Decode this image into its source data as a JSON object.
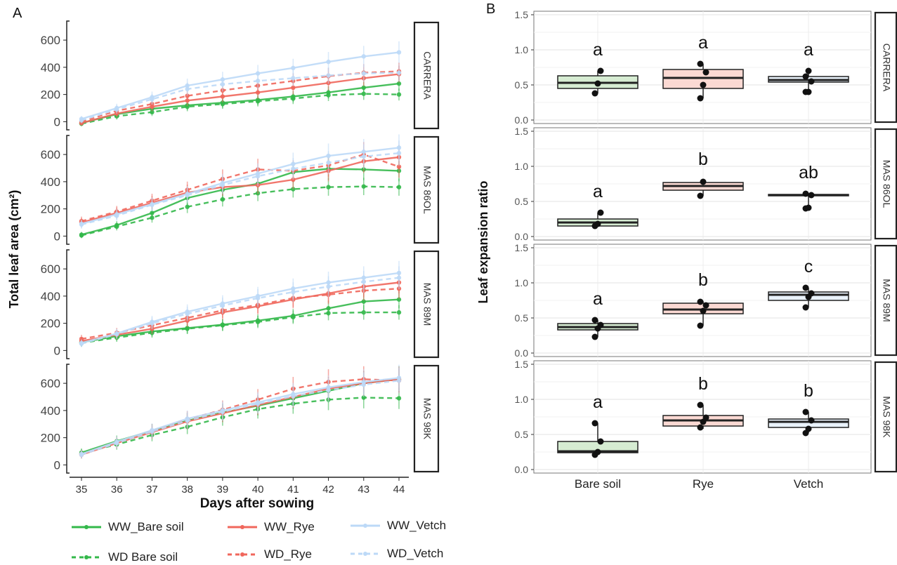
{
  "colors": {
    "bare_soil": "#33b84a",
    "rye": "#f0675c",
    "vetch": "#bcd9f7",
    "box_bare": "#d6ecd2",
    "box_rye": "#fbd9d3",
    "box_vetch": "#e9f2fb"
  },
  "panel_labels": [
    "A",
    "B"
  ],
  "legend": [
    {
      "label": "WW_Bare soil",
      "series": "bare",
      "dashed": false
    },
    {
      "label": "WD  Bare soil",
      "series": "bare",
      "dashed": true
    },
    {
      "label": "WW_Rye",
      "series": "rye",
      "dashed": false
    },
    {
      "label": "WD_Rye",
      "series": "rye",
      "dashed": true
    },
    {
      "label": "WW_Vetch",
      "series": "vetch",
      "dashed": false
    },
    {
      "label": "WD_Vetch",
      "series": "vetch",
      "dashed": true
    }
  ],
  "chart_data": [
    {
      "type": "line",
      "panel": "A",
      "xlabel": "Days after sowing",
      "ylabel": "Total leaf area (cm²)",
      "x": [
        35,
        36,
        37,
        38,
        39,
        40,
        41,
        42,
        43,
        44
      ],
      "xlim": [
        35,
        44
      ],
      "ylim": [
        -60,
        740
      ],
      "yticks": [
        0,
        200,
        400,
        600
      ],
      "facets": [
        {
          "name": "CARRERA",
          "series": [
            {
              "name": "WW_Bare soil",
              "values": [
                -10,
                55,
                95,
                120,
                140,
                160,
                185,
                215,
                250,
                280
              ]
            },
            {
              "name": "WD  Bare soil",
              "values": [
                -15,
                40,
                70,
                110,
                130,
                150,
                170,
                195,
                205,
                200
              ]
            },
            {
              "name": "WW_Rye",
              "values": [
                -10,
                60,
                110,
                155,
                185,
                215,
                250,
                285,
                320,
                350
              ]
            },
            {
              "name": "WD_Rye",
              "values": [
                0,
                80,
                130,
                190,
                230,
                265,
                300,
                335,
                360,
                370
              ]
            },
            {
              "name": "WW_Vetch",
              "values": [
                20,
                100,
                180,
                265,
                310,
                355,
                395,
                440,
                480,
                510
              ]
            },
            {
              "name": "WD_Vetch",
              "values": [
                10,
                90,
                165,
                240,
                275,
                300,
                320,
                340,
                355,
                360
              ]
            }
          ]
        },
        {
          "name": "MAS 86OL",
          "series": [
            {
              "name": "WW_Bare soil",
              "values": [
                10,
                80,
                170,
                280,
                340,
                385,
                470,
                495,
                490,
                480
              ]
            },
            {
              "name": "WD  Bare soil",
              "values": [
                5,
                70,
                135,
                215,
                270,
                315,
                345,
                360,
                365,
                360
              ]
            },
            {
              "name": "WW_Rye",
              "values": [
                100,
                170,
                245,
                320,
                360,
                375,
                415,
                480,
                550,
                580
              ]
            },
            {
              "name": "WD_Rye",
              "values": [
                110,
                180,
                260,
                340,
                420,
                490,
                480,
                520,
                600,
                510
              ]
            },
            {
              "name": "WW_Vetch",
              "values": [
                90,
                160,
                235,
                310,
                390,
                460,
                530,
                590,
                620,
                650
              ]
            },
            {
              "name": "WD_Vetch",
              "values": [
                85,
                150,
                230,
                300,
                375,
                440,
                495,
                540,
                585,
                610
              ]
            }
          ]
        },
        {
          "name": "MAS 89M",
          "series": [
            {
              "name": "WW_Bare soil",
              "values": [
                60,
                105,
                140,
                165,
                190,
                220,
                255,
                310,
                360,
                375
              ]
            },
            {
              "name": "WD  Bare soil",
              "values": [
                55,
                95,
                130,
                160,
                185,
                210,
                245,
                275,
                280,
                280
              ]
            },
            {
              "name": "WW_Rye",
              "values": [
                70,
                115,
                160,
                220,
                280,
                325,
                375,
                420,
                470,
                500
              ]
            },
            {
              "name": "WD_Rye",
              "values": [
                85,
                130,
                185,
                240,
                295,
                335,
                385,
                410,
                440,
                455
              ]
            },
            {
              "name": "WW_Vetch",
              "values": [
                55,
                125,
                210,
                285,
                345,
                400,
                455,
                500,
                535,
                570
              ]
            },
            {
              "name": "WD_Vetch",
              "values": [
                50,
                120,
                200,
                270,
                330,
                385,
                430,
                470,
                505,
                535
              ]
            }
          ]
        },
        {
          "name": "MAS 98K",
          "series": [
            {
              "name": "WW_Bare soil",
              "values": [
                90,
                175,
                250,
                325,
                385,
                435,
                490,
                545,
                600,
                630
              ]
            },
            {
              "name": "WD  Bare soil",
              "values": [
                85,
                150,
                220,
                280,
                350,
                410,
                450,
                480,
                495,
                490
              ]
            },
            {
              "name": "WW_Rye",
              "values": [
                75,
                160,
                240,
                320,
                380,
                440,
                500,
                560,
                600,
                630
              ]
            },
            {
              "name": "WD_Rye",
              "values": [
                80,
                165,
                250,
                335,
                405,
                480,
                560,
                610,
                630,
                620
              ]
            },
            {
              "name": "WW_Vetch",
              "values": [
                80,
                170,
                255,
                340,
                400,
                460,
                520,
                570,
                610,
                640
              ]
            },
            {
              "name": "WD_Vetch",
              "values": [
                75,
                160,
                245,
                325,
                390,
                450,
                505,
                550,
                590,
                620
              ]
            }
          ]
        }
      ]
    },
    {
      "type": "box",
      "panel": "B",
      "xlabel": "",
      "ylabel": "Leaf expansion ratio",
      "categories": [
        "Bare soil",
        "Rye",
        "Vetch"
      ],
      "ylim": [
        -0.05,
        1.55
      ],
      "yticks": [
        "0.0",
        "0.5",
        "1.0",
        "1.5"
      ],
      "facets": [
        {
          "name": "CARRERA",
          "boxes": [
            {
              "q1": 0.45,
              "median": 0.53,
              "q3": 0.63,
              "whisker_low": 0.38,
              "whisker_high": 0.7,
              "points": [
                0.38,
                0.52,
                0.7
              ],
              "letter": "a"
            },
            {
              "q1": 0.45,
              "median": 0.6,
              "q3": 0.72,
              "whisker_low": 0.31,
              "whisker_high": 0.8,
              "points": [
                0.31,
                0.5,
                0.68,
                0.8
              ],
              "letter": "a"
            },
            {
              "q1": 0.54,
              "median": 0.57,
              "q3": 0.62,
              "whisker_low": 0.4,
              "whisker_high": 0.7,
              "points": [
                0.4,
                0.4,
                0.55,
                0.62,
                0.7
              ],
              "letter": "a"
            }
          ]
        },
        {
          "name": "MAS 86OL",
          "boxes": [
            {
              "q1": 0.15,
              "median": 0.2,
              "q3": 0.25,
              "whisker_low": 0.15,
              "whisker_high": 0.34,
              "points": [
                0.15,
                0.18,
                0.34
              ],
              "letter": "a"
            },
            {
              "q1": 0.66,
              "median": 0.72,
              "q3": 0.77,
              "whisker_low": 0.58,
              "whisker_high": 0.8,
              "points": [
                0.58,
                0.78
              ],
              "letter": "b"
            },
            {
              "q1": 0.59,
              "median": 0.59,
              "q3": 0.6,
              "whisker_low": 0.4,
              "whisker_high": 0.61,
              "points": [
                0.4,
                0.41,
                0.59,
                0.61
              ],
              "letter": "ab"
            }
          ]
        },
        {
          "name": "MAS 89M",
          "boxes": [
            {
              "q1": 0.33,
              "median": 0.37,
              "q3": 0.42,
              "whisker_low": 0.23,
              "whisker_high": 0.47,
              "points": [
                0.23,
                0.35,
                0.4,
                0.47
              ],
              "letter": "a"
            },
            {
              "q1": 0.56,
              "median": 0.62,
              "q3": 0.71,
              "whisker_low": 0.39,
              "whisker_high": 0.74,
              "points": [
                0.39,
                0.6,
                0.68,
                0.73
              ],
              "letter": "b"
            },
            {
              "q1": 0.75,
              "median": 0.83,
              "q3": 0.87,
              "whisker_low": 0.65,
              "whisker_high": 0.93,
              "points": [
                0.65,
                0.8,
                0.85,
                0.93
              ],
              "letter": "c"
            }
          ]
        },
        {
          "name": "MAS 98K",
          "boxes": [
            {
              "q1": 0.24,
              "median": 0.26,
              "q3": 0.4,
              "whisker_low": 0.21,
              "whisker_high": 0.66,
              "points": [
                0.21,
                0.25,
                0.4,
                0.66
              ],
              "letter": "a"
            },
            {
              "q1": 0.62,
              "median": 0.7,
              "q3": 0.77,
              "whisker_low": 0.58,
              "whisker_high": 0.92,
              "points": [
                0.6,
                0.68,
                0.74,
                0.92
              ],
              "letter": "b"
            },
            {
              "q1": 0.6,
              "median": 0.68,
              "q3": 0.72,
              "whisker_low": 0.52,
              "whisker_high": 0.82,
              "points": [
                0.52,
                0.58,
                0.7,
                0.82
              ],
              "letter": "b"
            }
          ]
        }
      ]
    }
  ]
}
